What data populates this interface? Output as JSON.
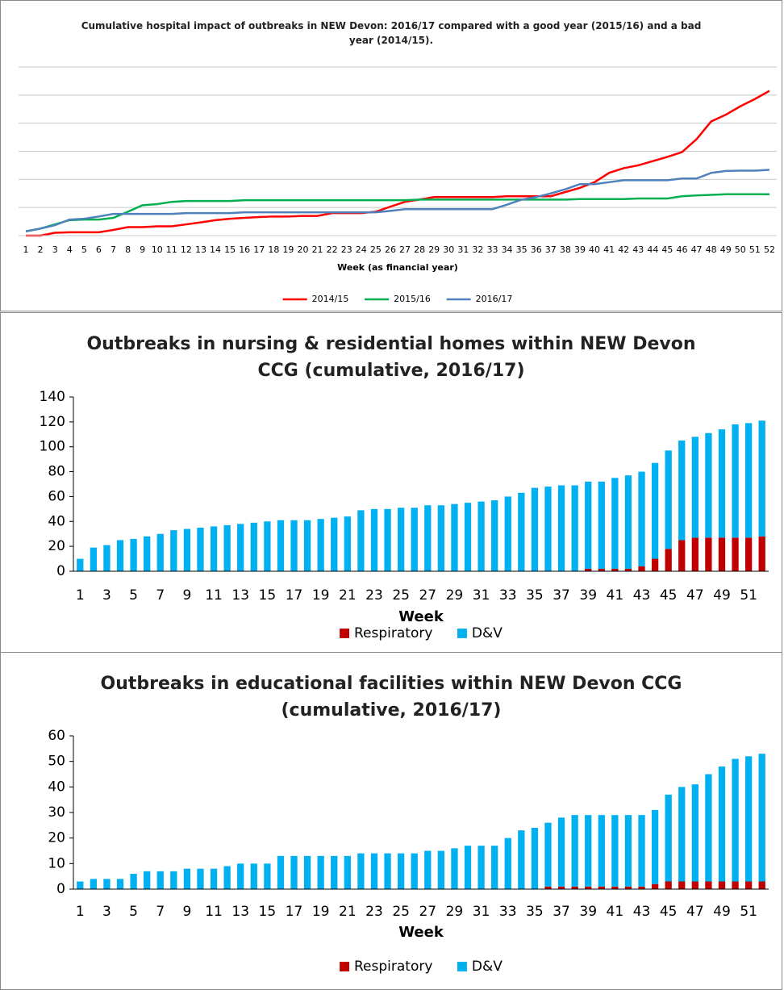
{
  "chart_data": [
    {
      "type": "line",
      "title": "Cumulative hospital impact of outbreaks in NEW Devon: 2016/17 compared with a good year (2015/16) and a bad year (2014/15).",
      "x_label": "Week (as financial year)",
      "categories": [
        "1",
        "2",
        "3",
        "4",
        "5",
        "6",
        "7",
        "8",
        "9",
        "10",
        "11",
        "12",
        "13",
        "14",
        "15",
        "16",
        "17",
        "18",
        "19",
        "20",
        "21",
        "22",
        "23",
        "24",
        "25",
        "26",
        "27",
        "28",
        "29",
        "30",
        "31",
        "32",
        "33",
        "34",
        "35",
        "36",
        "37",
        "38",
        "39",
        "40",
        "41",
        "42",
        "43",
        "44",
        "45",
        "46",
        "47",
        "48",
        "49",
        "50",
        "51",
        "52"
      ],
      "series": [
        {
          "name": "2014/15",
          "color": "#ff0000",
          "values": [
            0,
            0,
            0.1,
            0.12,
            0.12,
            0.12,
            0.2,
            0.3,
            0.3,
            0.33,
            0.33,
            0.4,
            0.47,
            0.55,
            0.6,
            0.63,
            0.66,
            0.68,
            0.68,
            0.7,
            0.7,
            0.8,
            0.8,
            0.8,
            0.85,
            1.03,
            1.2,
            1.28,
            1.37,
            1.37,
            1.37,
            1.37,
            1.37,
            1.4,
            1.4,
            1.4,
            1.4,
            1.55,
            1.7,
            1.9,
            2.23,
            2.4,
            2.5,
            2.65,
            2.8,
            2.97,
            3.43,
            4.06,
            4.3,
            4.6,
            4.86,
            5.15
          ]
        },
        {
          "name": "2015/16",
          "color": "#00b050",
          "values": [
            0.15,
            0.25,
            0.4,
            0.55,
            0.57,
            0.57,
            0.63,
            0.85,
            1.08,
            1.12,
            1.2,
            1.23,
            1.23,
            1.23,
            1.23,
            1.26,
            1.26,
            1.26,
            1.26,
            1.26,
            1.26,
            1.26,
            1.26,
            1.26,
            1.26,
            1.26,
            1.26,
            1.28,
            1.28,
            1.28,
            1.28,
            1.28,
            1.28,
            1.28,
            1.28,
            1.28,
            1.28,
            1.28,
            1.3,
            1.3,
            1.3,
            1.3,
            1.32,
            1.32,
            1.32,
            1.4,
            1.43,
            1.45,
            1.47,
            1.47,
            1.47,
            1.47
          ]
        },
        {
          "name": "2016/17",
          "color": "#4f81bd",
          "values": [
            0.15,
            0.25,
            0.37,
            0.57,
            0.6,
            0.68,
            0.77,
            0.77,
            0.77,
            0.77,
            0.77,
            0.8,
            0.8,
            0.8,
            0.8,
            0.83,
            0.83,
            0.83,
            0.83,
            0.83,
            0.83,
            0.83,
            0.83,
            0.83,
            0.83,
            0.88,
            0.94,
            0.94,
            0.94,
            0.94,
            0.94,
            0.94,
            0.94,
            1.1,
            1.28,
            1.37,
            1.5,
            1.65,
            1.83,
            1.83,
            1.9,
            1.97,
            1.97,
            1.97,
            1.97,
            2.03,
            2.03,
            2.23,
            2.3,
            2.31,
            2.31,
            2.34
          ]
        }
      ],
      "ylim": [
        0,
        6
      ],
      "yticks": [
        0,
        1,
        2,
        3,
        4,
        5,
        6
      ],
      "ytick_labels": false,
      "grid": true,
      "legend": "bottom"
    },
    {
      "type": "stacked_bar",
      "title": "Outbreaks in nursing & residential homes within NEW Devon CCG (cumulative, 2016/17)",
      "x_label": "Week",
      "categories": [
        "1",
        null,
        "3",
        null,
        "5",
        null,
        "7",
        null,
        "9",
        null,
        "11",
        null,
        "13",
        null,
        "15",
        null,
        "17",
        null,
        "19",
        null,
        "21",
        null,
        "23",
        null,
        "25",
        null,
        "27",
        null,
        "29",
        null,
        "31",
        null,
        "33",
        null,
        "35",
        null,
        "37",
        null,
        "39",
        null,
        "41",
        null,
        "43",
        null,
        "45",
        null,
        "47",
        null,
        "49",
        null,
        "51",
        null
      ],
      "series": [
        {
          "name": "Respiratory",
          "color": "#c00000",
          "values": [
            0,
            0,
            0,
            0,
            0,
            0,
            0,
            0,
            0,
            0,
            0,
            0,
            0,
            0,
            0,
            0,
            0,
            0,
            0,
            0,
            0,
            0,
            0,
            0,
            0,
            0,
            0,
            0,
            0,
            0,
            0,
            0,
            0,
            0,
            0,
            0,
            0,
            0,
            2,
            2,
            2,
            2,
            4,
            10,
            18,
            25,
            27,
            27,
            27,
            27,
            27,
            28
          ]
        },
        {
          "name": "D&V",
          "color": "#00b0f0",
          "values": [
            10,
            19,
            21,
            25,
            26,
            28,
            30,
            33,
            34,
            35,
            36,
            37,
            38,
            39,
            40,
            41,
            41,
            41,
            42,
            43,
            44,
            49,
            50,
            50,
            51,
            51,
            53,
            53,
            54,
            55,
            56,
            57,
            60,
            63,
            67,
            68,
            69,
            69,
            70,
            70,
            73,
            75,
            76,
            77,
            79,
            80,
            81,
            84,
            87,
            91,
            92,
            93
          ]
        }
      ],
      "ylim": [
        0,
        140
      ],
      "yticks": [
        0,
        20,
        40,
        60,
        80,
        100,
        120,
        140
      ],
      "grid": false,
      "legend": "bottom"
    },
    {
      "type": "stacked_bar",
      "title": "Outbreaks in educational facilities within NEW Devon CCG (cumulative, 2016/17)",
      "x_label": "Week",
      "categories": [
        "1",
        null,
        "3",
        null,
        "5",
        null,
        "7",
        null,
        "9",
        null,
        "11",
        null,
        "13",
        null,
        "15",
        null,
        "17",
        null,
        "19",
        null,
        "21",
        null,
        "23",
        null,
        "25",
        null,
        "27",
        null,
        "29",
        null,
        "31",
        null,
        "33",
        null,
        "35",
        null,
        "37",
        null,
        "39",
        null,
        "41",
        null,
        "43",
        null,
        "45",
        null,
        "47",
        null,
        "49",
        null,
        "51",
        null
      ],
      "series": [
        {
          "name": "Respiratory",
          "color": "#c00000",
          "values": [
            0,
            0,
            0,
            0,
            0,
            0,
            0,
            0,
            0,
            0,
            0,
            0,
            0,
            0,
            0,
            0,
            0,
            0,
            0,
            0,
            0,
            0,
            0,
            0,
            0,
            0,
            0,
            0,
            0,
            0,
            0,
            0,
            0,
            0,
            0,
            1,
            1,
            1,
            1,
            1,
            1,
            1,
            1,
            2,
            3,
            3,
            3,
            3,
            3,
            3,
            3,
            3
          ]
        },
        {
          "name": "D&V",
          "color": "#00b0f0",
          "values": [
            3,
            4,
            4,
            4,
            6,
            7,
            7,
            7,
            8,
            8,
            8,
            9,
            10,
            10,
            10,
            13,
            13,
            13,
            13,
            13,
            13,
            14,
            14,
            14,
            14,
            14,
            15,
            15,
            16,
            17,
            17,
            17,
            20,
            23,
            24,
            25,
            27,
            28,
            28,
            28,
            28,
            28,
            28,
            29,
            34,
            37,
            38,
            42,
            45,
            48,
            49,
            50
          ]
        }
      ],
      "ylim": [
        0,
        60
      ],
      "yticks": [
        0,
        10,
        20,
        30,
        40,
        50,
        60
      ],
      "grid": false,
      "legend": "bottom"
    }
  ]
}
